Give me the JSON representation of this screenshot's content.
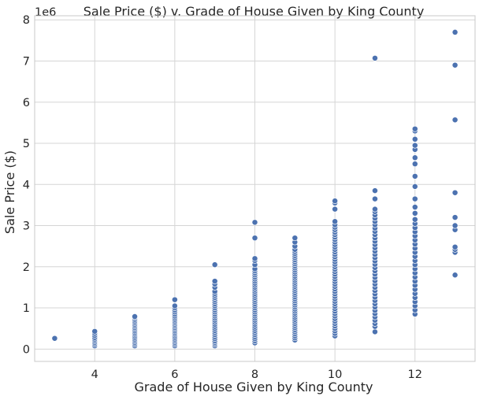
{
  "chart_data": {
    "type": "scatter",
    "title": "Sale Price ($) v. Grade of House Given by King County",
    "xlabel": "Grade of House Given by King County",
    "ylabel": "Sale Price ($)",
    "y_offset_label": "1e6",
    "xlim": [
      2.5,
      13.5
    ],
    "ylim": [
      -0.3,
      8.1
    ],
    "x_ticks": [
      4,
      6,
      8,
      10,
      12
    ],
    "y_ticks": [
      0,
      1,
      2,
      3,
      4,
      5,
      6,
      7,
      8
    ],
    "grid": true,
    "colors": {
      "marker": "#4c72b0",
      "marker_edge": "#ffffff",
      "grid": "#d5d5d5",
      "frame": "#c8c8c8"
    },
    "series": [
      {
        "x": 3,
        "y": [
          0.26
        ]
      },
      {
        "x": 4,
        "y": [
          0.08,
          0.12,
          0.16,
          0.2,
          0.24,
          0.28,
          0.33,
          0.38,
          0.43
        ]
      },
      {
        "x": 5,
        "y": [
          0.08,
          0.12,
          0.16,
          0.2,
          0.24,
          0.28,
          0.32,
          0.36,
          0.4,
          0.44,
          0.48,
          0.52,
          0.56,
          0.6,
          0.64,
          0.68,
          0.72,
          0.76,
          0.79
        ]
      },
      {
        "x": 6,
        "y": [
          0.08,
          0.12,
          0.16,
          0.2,
          0.24,
          0.28,
          0.32,
          0.36,
          0.4,
          0.44,
          0.48,
          0.52,
          0.56,
          0.6,
          0.64,
          0.68,
          0.72,
          0.76,
          0.8,
          0.85,
          0.9,
          0.95,
          1.0,
          1.05,
          1.2
        ]
      },
      {
        "x": 7,
        "y": [
          0.08,
          0.12,
          0.16,
          0.2,
          0.25,
          0.3,
          0.35,
          0.4,
          0.45,
          0.5,
          0.55,
          0.6,
          0.65,
          0.7,
          0.75,
          0.8,
          0.85,
          0.9,
          0.95,
          1.0,
          1.05,
          1.1,
          1.15,
          1.2,
          1.25,
          1.3,
          1.35,
          1.4,
          1.5,
          1.58,
          1.65,
          2.05
        ]
      },
      {
        "x": 8,
        "y": [
          0.15,
          0.2,
          0.25,
          0.3,
          0.35,
          0.4,
          0.45,
          0.5,
          0.55,
          0.6,
          0.65,
          0.7,
          0.75,
          0.8,
          0.85,
          0.9,
          0.95,
          1.0,
          1.05,
          1.1,
          1.15,
          1.2,
          1.25,
          1.3,
          1.35,
          1.4,
          1.45,
          1.5,
          1.55,
          1.6,
          1.65,
          1.7,
          1.75,
          1.8,
          1.85,
          1.9,
          1.95,
          2.05,
          2.15,
          2.2,
          2.7,
          3.08
        ]
      },
      {
        "x": 9,
        "y": [
          0.22,
          0.27,
          0.32,
          0.37,
          0.42,
          0.47,
          0.52,
          0.57,
          0.62,
          0.67,
          0.72,
          0.77,
          0.82,
          0.87,
          0.92,
          0.97,
          1.02,
          1.07,
          1.12,
          1.17,
          1.22,
          1.27,
          1.32,
          1.37,
          1.42,
          1.47,
          1.52,
          1.57,
          1.62,
          1.67,
          1.72,
          1.77,
          1.82,
          1.87,
          1.92,
          1.97,
          2.02,
          2.07,
          2.12,
          2.17,
          2.22,
          2.27,
          2.32,
          2.37,
          2.42,
          2.5,
          2.6,
          2.7
        ]
      },
      {
        "x": 10,
        "y": [
          0.32,
          0.38,
          0.44,
          0.5,
          0.56,
          0.62,
          0.68,
          0.74,
          0.8,
          0.86,
          0.92,
          0.98,
          1.04,
          1.1,
          1.16,
          1.22,
          1.28,
          1.34,
          1.4,
          1.46,
          1.52,
          1.58,
          1.64,
          1.7,
          1.76,
          1.82,
          1.88,
          1.94,
          2.0,
          2.06,
          2.12,
          2.18,
          2.24,
          2.3,
          2.36,
          2.42,
          2.48,
          2.54,
          2.6,
          2.66,
          2.72,
          2.78,
          2.84,
          2.9,
          2.96,
          3.02,
          3.1,
          3.4,
          3.55,
          3.6
        ]
      },
      {
        "x": 11,
        "y": [
          0.42,
          0.55,
          0.62,
          0.7,
          0.78,
          0.86,
          0.94,
          1.02,
          1.1,
          1.18,
          1.26,
          1.34,
          1.42,
          1.5,
          1.58,
          1.66,
          1.74,
          1.82,
          1.9,
          1.98,
          2.06,
          2.14,
          2.22,
          2.3,
          2.38,
          2.46,
          2.54,
          2.62,
          2.7,
          2.78,
          2.86,
          2.94,
          3.02,
          3.1,
          3.18,
          3.26,
          3.34,
          3.4,
          3.65,
          3.85,
          7.07
        ]
      },
      {
        "x": 12,
        "y": [
          0.85,
          0.95,
          1.05,
          1.15,
          1.25,
          1.35,
          1.45,
          1.55,
          1.65,
          1.75,
          1.85,
          1.95,
          2.05,
          2.15,
          2.25,
          2.35,
          2.45,
          2.55,
          2.65,
          2.75,
          2.85,
          2.95,
          3.05,
          3.15,
          3.3,
          3.45,
          3.65,
          3.95,
          4.2,
          4.5,
          4.65,
          4.85,
          4.95,
          5.1,
          5.3,
          5.35
        ]
      },
      {
        "x": 13,
        "y": [
          1.8,
          2.35,
          2.42,
          2.48,
          2.9,
          3.0,
          3.2,
          3.8,
          5.57,
          6.9,
          7.7
        ]
      }
    ]
  }
}
